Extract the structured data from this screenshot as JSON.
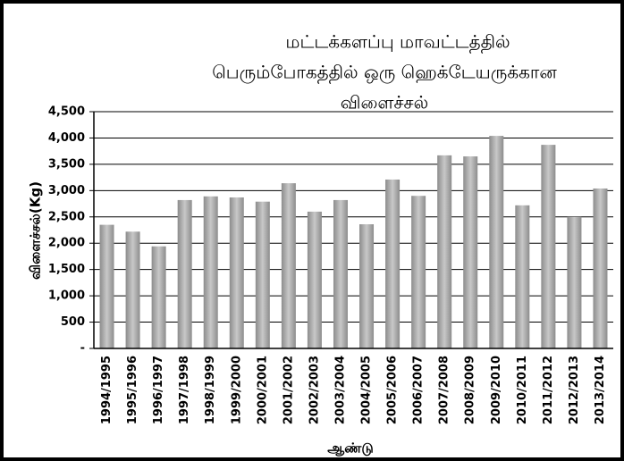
{
  "chart_data": {
    "type": "bar",
    "title": [
      "மட்டக்களப்பு மாவட்டத்தில்",
      "பெரும்போகத்தில் ஒரு ஹெக்டேயருக்கான",
      "விளைச்சல்"
    ],
    "y_label": "விளைச்சல்(Kg)",
    "x_label": "ஆண்டு",
    "categories": [
      "1994/1995",
      "1995/1996",
      "1996/1997",
      "1997/1998",
      "1998/1999",
      "1999/2000",
      "2000/2001",
      "2001/2002",
      "2002/2003",
      "2003/2004",
      "2004/2005",
      "2005/2006",
      "2006/2007",
      "2007/2008",
      "2008/2009",
      "2009/2010",
      "2010/2011",
      "2011/2012",
      "2012/2013",
      "2013/2014"
    ],
    "values": [
      2350,
      2220,
      1940,
      2820,
      2890,
      2870,
      2790,
      3140,
      2600,
      2820,
      2360,
      3210,
      2900,
      3670,
      3650,
      4040,
      2720,
      3870,
      2500,
      3040
    ],
    "color": "#a6a6a6",
    "ylim": [
      0,
      4500
    ],
    "yticks": [
      {
        "value": 0,
        "label": "-"
      },
      500,
      {
        "value": 1000,
        "label": "1,000"
      },
      {
        "value": 1500,
        "label": "1,500"
      },
      {
        "value": 2000,
        "label": "2,000"
      },
      {
        "value": 2500,
        "label": "2,500"
      },
      {
        "value": 3000,
        "label": "3,000"
      },
      {
        "value": 3500,
        "label": "3,500"
      },
      {
        "value": 4000,
        "label": "4,000"
      },
      {
        "value": 4500,
        "label": "4,500"
      }
    ],
    "grid": true
  }
}
